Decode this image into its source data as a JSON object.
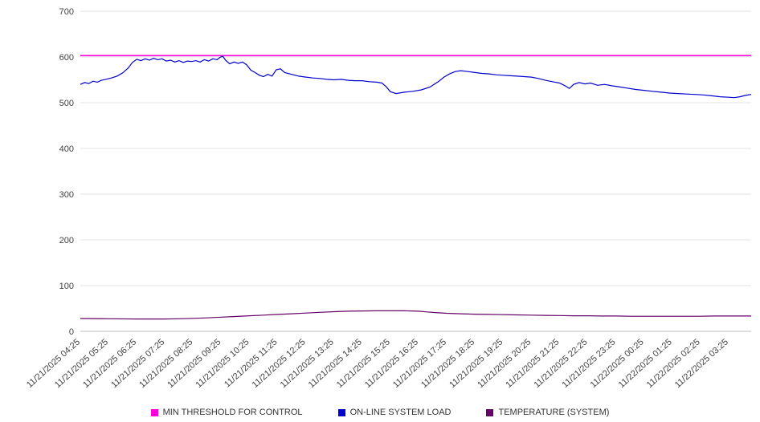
{
  "colors": {
    "background": "#ffffff",
    "gridline": "#e3e3e3",
    "zero_line": "#bdbdbd",
    "axis_text": "#404040"
  },
  "chart_data": {
    "type": "line",
    "title": "",
    "xlabel": "",
    "ylabel": "",
    "ylim": [
      0,
      700
    ],
    "y_ticks": [
      0,
      100,
      200,
      300,
      400,
      500,
      600,
      700
    ],
    "grid": true,
    "legend_position": "bottom",
    "x_tick_labels": [
      "11/21/2025 04:25",
      "11/21/2025 05:25",
      "11/21/2025 06:25",
      "11/21/2025 07:25",
      "11/21/2025 08:25",
      "11/21/2025 09:25",
      "11/21/2025 10:25",
      "11/21/2025 11:25",
      "11/21/2025 12:25",
      "11/21/2025 13:25",
      "11/21/2025 14:25",
      "11/21/2025 15:25",
      "11/21/2025 16:25",
      "11/21/2025 17:25",
      "11/21/2025 18:25",
      "11/21/2025 19:25",
      "11/21/2025 20:25",
      "11/21/2025 21:25",
      "11/21/2025 22:25",
      "11/21/2025 23:25",
      "11/22/2025 00:25",
      "11/22/2025 01:25",
      "11/22/2025 02:25",
      "11/22/2025 03:25"
    ],
    "series": [
      {
        "name": "MIN THRESHOLD FOR CONTROL",
        "color": "#ff00dd",
        "x": [
          0,
          23.8
        ],
        "values": [
          603,
          603
        ]
      },
      {
        "name": "ON-LINE SYSTEM LOAD",
        "color": "#0000cd",
        "x": [
          0,
          0.15,
          0.3,
          0.45,
          0.6,
          0.75,
          0.9,
          1.1,
          1.3,
          1.5,
          1.7,
          1.85,
          2.0,
          2.15,
          2.3,
          2.45,
          2.6,
          2.75,
          2.9,
          3.05,
          3.2,
          3.35,
          3.5,
          3.65,
          3.8,
          3.95,
          4.1,
          4.25,
          4.4,
          4.55,
          4.7,
          4.85,
          4.95,
          5.05,
          5.15,
          5.3,
          5.45,
          5.6,
          5.75,
          5.9,
          6.05,
          6.2,
          6.35,
          6.5,
          6.65,
          6.8,
          6.95,
          7.1,
          7.25,
          7.5,
          7.75,
          8.0,
          8.25,
          8.5,
          8.75,
          9.0,
          9.25,
          9.5,
          9.75,
          10.0,
          10.25,
          10.5,
          10.7,
          10.85,
          11.0,
          11.2,
          11.5,
          11.8,
          12.1,
          12.4,
          12.7,
          12.9,
          13.1,
          13.3,
          13.5,
          13.75,
          14.0,
          14.25,
          14.5,
          14.75,
          15.0,
          15.25,
          15.5,
          15.75,
          16.0,
          16.25,
          16.5,
          16.75,
          17.0,
          17.2,
          17.35,
          17.5,
          17.7,
          17.9,
          18.1,
          18.35,
          18.6,
          18.85,
          19.1,
          19.4,
          19.7,
          20.0,
          20.3,
          20.6,
          20.9,
          21.2,
          21.5,
          21.8,
          22.1,
          22.4,
          22.7,
          23.0,
          23.2,
          23.4,
          23.6,
          23.8
        ],
        "values": [
          540,
          544,
          542,
          547,
          545,
          549,
          551,
          554,
          558,
          565,
          576,
          588,
          595,
          592,
          596,
          593,
          597,
          594,
          596,
          591,
          593,
          589,
          592,
          588,
          591,
          590,
          592,
          589,
          594,
          591,
          596,
          594,
          599,
          602,
          593,
          585,
          589,
          586,
          589,
          583,
          571,
          566,
          560,
          557,
          562,
          558,
          572,
          574,
          566,
          562,
          558,
          556,
          554,
          553,
          551,
          550,
          551,
          549,
          548,
          548,
          546,
          545,
          543,
          535,
          524,
          520,
          523,
          525,
          528,
          534,
          546,
          556,
          563,
          568,
          570,
          568,
          566,
          564,
          563,
          561,
          560,
          559,
          558,
          557,
          556,
          553,
          549,
          546,
          543,
          537,
          531,
          540,
          544,
          541,
          543,
          538,
          540,
          537,
          535,
          532,
          529,
          527,
          525,
          523,
          521,
          520,
          519,
          518,
          517,
          515,
          513,
          512,
          511,
          513,
          516,
          518
        ]
      },
      {
        "name": "TEMPERATURE (SYSTEM)",
        "color": "#660066",
        "x": [
          0,
          1,
          2,
          3,
          3.5,
          4,
          4.5,
          5,
          5.5,
          6,
          6.5,
          7,
          7.5,
          8,
          8.5,
          9,
          9.5,
          10,
          10.5,
          11,
          11.5,
          12,
          12.3,
          12.6,
          13,
          13.5,
          14,
          14.5,
          15,
          15.5,
          16,
          16.5,
          17,
          17.5,
          18,
          18.5,
          19,
          19.5,
          20,
          20.5,
          21,
          21.5,
          22,
          22.5,
          23,
          23.8
        ],
        "values": [
          28,
          27.5,
          27,
          27,
          27.5,
          28.5,
          29.5,
          31,
          32.5,
          34,
          35.5,
          37,
          38.5,
          40,
          41.5,
          43,
          44,
          44.5,
          45,
          45,
          45,
          44,
          42.5,
          41,
          39.5,
          38.5,
          37.5,
          37,
          36.5,
          36,
          35.5,
          35,
          34.5,
          34,
          34,
          33.5,
          33.5,
          33,
          33,
          33,
          33,
          33,
          33,
          33.5,
          33.5,
          33.5
        ]
      }
    ]
  }
}
